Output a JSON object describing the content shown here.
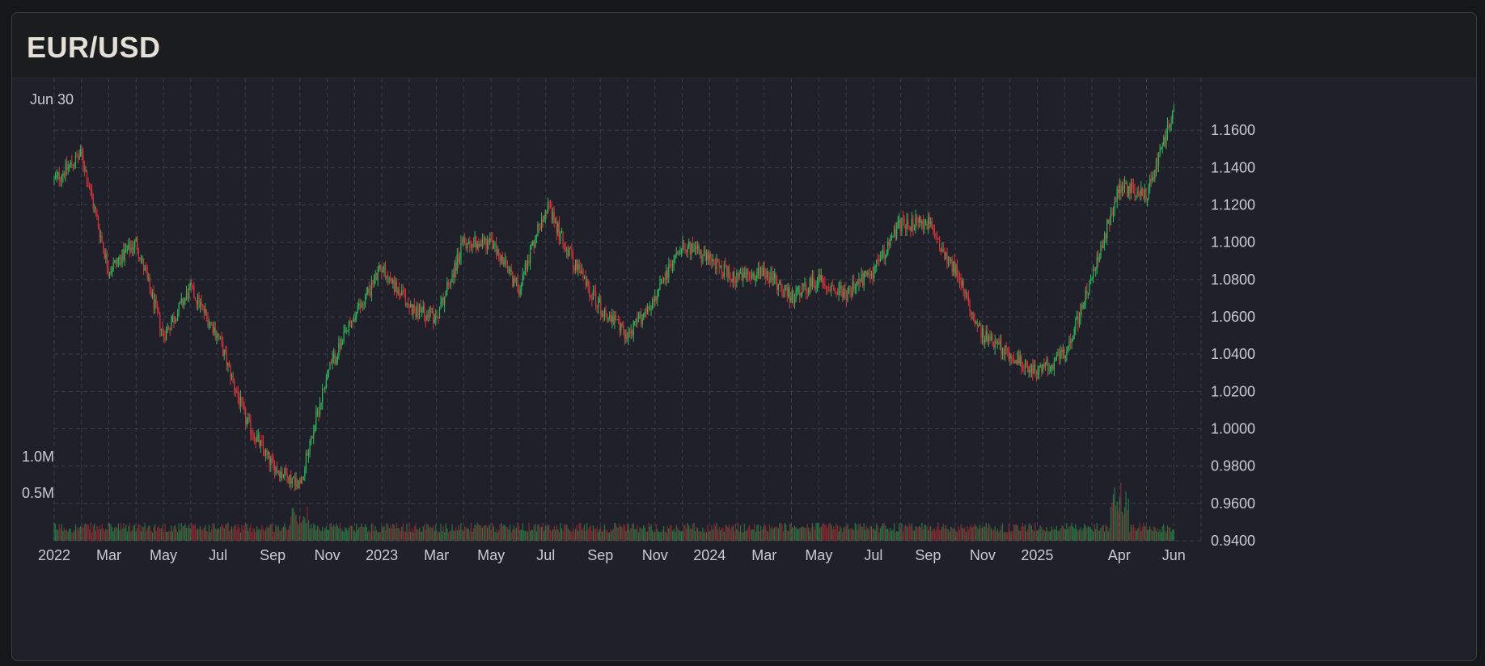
{
  "header": {
    "title": "EUR/USD"
  },
  "legend": {
    "date_label": "Jun 30"
  },
  "colors": {
    "up": "#2fb85a",
    "down": "#d8343b",
    "grid": "#3a3d4a",
    "text": "#c9cbd2"
  },
  "chart_data": {
    "type": "candlestick",
    "title": "EUR/USD",
    "price_axis": {
      "position": "right",
      "ticks": [
        "1.1600",
        "1.1400",
        "1.1200",
        "1.1000",
        "1.0800",
        "1.0600",
        "1.0400",
        "1.0200",
        "1.0000",
        "0.9800",
        "0.9600",
        "0.9400"
      ],
      "range": [
        0.94,
        1.18
      ]
    },
    "volume_axis": {
      "position": "left",
      "ticks": [
        "1.0M",
        "0.5M"
      ],
      "range": [
        0,
        1.0
      ]
    },
    "x_axis": {
      "labels": [
        "2022",
        "Mar",
        "May",
        "Jul",
        "Sep",
        "Nov",
        "2023",
        "Mar",
        "May",
        "Jul",
        "Sep",
        "Nov",
        "2024",
        "Mar",
        "May",
        "Jul",
        "Sep",
        "Nov",
        "2025",
        "Apr",
        "Jun"
      ],
      "label_dates": [
        "2022-01",
        "2022-03",
        "2022-05",
        "2022-07",
        "2022-09",
        "2022-11",
        "2023-01",
        "2023-03",
        "2023-05",
        "2023-07",
        "2023-09",
        "2023-11",
        "2024-01",
        "2024-03",
        "2024-05",
        "2024-07",
        "2024-09",
        "2024-11",
        "2025-01",
        "2025-04",
        "2025-06"
      ],
      "range": [
        "2022-01",
        "2025-07"
      ]
    },
    "grid": true,
    "series": [
      {
        "name": "EUR/USD",
        "kind": "candlestick",
        "approx_close_path": [
          [
            "2022-01",
            1.133
          ],
          [
            "2022-02",
            1.147
          ],
          [
            "2022-03",
            1.085
          ],
          [
            "2022-04",
            1.1
          ],
          [
            "2022-05",
            1.05
          ],
          [
            "2022-06",
            1.075
          ],
          [
            "2022-07",
            1.05
          ],
          [
            "2022-08",
            1.005
          ],
          [
            "2022-09",
            0.98
          ],
          [
            "2022-10",
            0.97
          ],
          [
            "2022-11",
            1.03
          ],
          [
            "2022-12",
            1.06
          ],
          [
            "2023-01",
            1.087
          ],
          [
            "2023-02",
            1.065
          ],
          [
            "2023-03",
            1.06
          ],
          [
            "2023-04",
            1.1
          ],
          [
            "2023-05",
            1.1
          ],
          [
            "2023-06",
            1.075
          ],
          [
            "2023-07",
            1.12
          ],
          [
            "2023-08",
            1.09
          ],
          [
            "2023-09",
            1.065
          ],
          [
            "2023-10",
            1.05
          ],
          [
            "2023-11",
            1.07
          ],
          [
            "2023-12",
            1.1
          ],
          [
            "2024-01",
            1.09
          ],
          [
            "2024-02",
            1.08
          ],
          [
            "2024-03",
            1.085
          ],
          [
            "2024-04",
            1.07
          ],
          [
            "2024-05",
            1.08
          ],
          [
            "2024-06",
            1.072
          ],
          [
            "2024-07",
            1.085
          ],
          [
            "2024-08",
            1.11
          ],
          [
            "2024-09",
            1.11
          ],
          [
            "2024-10",
            1.085
          ],
          [
            "2024-11",
            1.05
          ],
          [
            "2024-12",
            1.04
          ],
          [
            "2025-01",
            1.03
          ],
          [
            "2025-02",
            1.04
          ],
          [
            "2025-03",
            1.08
          ],
          [
            "2025-04",
            1.13
          ],
          [
            "2025-05",
            1.125
          ],
          [
            "2025-06",
            1.17
          ]
        ]
      },
      {
        "name": "Volume",
        "kind": "histogram",
        "typical_value": 0.25,
        "spikes": [
          [
            "2022-10",
            0.55
          ],
          [
            "2025-04",
            0.9
          ]
        ]
      }
    ]
  }
}
